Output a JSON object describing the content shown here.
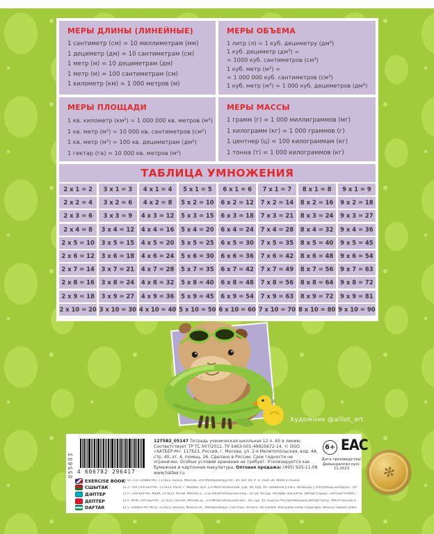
{
  "colors": {
    "background_green": "#a3ca3c",
    "panel_lavender": "#cabdd9",
    "heading_red": "#e32a2b"
  },
  "cards": [
    {
      "title": "МЕРЫ ДЛИНЫ (ЛИНЕЙНЫЕ)",
      "lines": [
        "1 сантиметр (см) = 10 миллиметрам (мм)",
        "1 дециметр (дм) = 10 сантиметрам (см)",
        "1 метр (м) = 10 дециметрам (дм)",
        "1 метр (м) = 100 сантиметрам (см)",
        "1 километр (км) = 1 000 метров (м)"
      ]
    },
    {
      "title": "МЕРЫ ОБЪЕМА",
      "lines": [
        "1 литр (л) = 1 куб. дециметру (дм³)",
        "1 куб. дециметр (дм³) =",
        "= 1000 куб. сантиметров (см³)",
        "1 куб. метр (м³) =",
        "= 1 000 000 куб. сантиметров (см³)",
        "1 куб. метр (м³) = 1 000 куб. дециметров (дм³)"
      ]
    },
    {
      "title": "МЕРЫ ПЛОЩАДИ",
      "lines": [
        "1 кв. километр (км²) = 1 000 000 кв. метров (м²)",
        "1 кв. метр (м²) = 10 000 кв. сантиметров (см²)",
        "1 кв. метр (м²) = 100 кв. дециметрам (дм²)",
        "1 гектар (га) = 10 000 кв. метров (м²)"
      ]
    },
    {
      "title": "МЕРЫ МАССЫ",
      "lines": [
        "1 грамм (г) = 1 000 миллиграммов (мг)",
        "1 килограмм (кг) = 1 000 граммов (г)",
        "1 центнер (ц) = 100 килограммам (кг)",
        "1 тонна (т) = 1 000 килограммов (кг)"
      ]
    }
  ],
  "multiplication": {
    "title": "ТАБЛИЦА УМНОЖЕНИЯ",
    "rows": [
      [
        "2 x 1 = 2",
        "3 x 1 = 3",
        "4 x 1 = 4",
        "5 x 1 = 5",
        "6 x 1 = 6",
        "7 x 1 = 7",
        "8 x 1 = 8",
        "9 x 1 = 9"
      ],
      [
        "2 x 2 = 4",
        "3 x 2 = 6",
        "4 x 2 = 8",
        "5 x 2 = 10",
        "6 x 2 = 12",
        "7 x 2 = 14",
        "8 x 2 = 16",
        "9 x 2 = 18"
      ],
      [
        "2 x 3 = 6",
        "3 x 3 = 9",
        "4 x 3 = 12",
        "5 x 3 = 15",
        "6 x 3 = 18",
        "7 x 3 = 21",
        "8 x 3 = 24",
        "9 x 3 = 27"
      ],
      [
        "2 x 4 = 8",
        "3 x 4 = 12",
        "4 x 4 = 16",
        "5 x 4 = 20",
        "6 x 4 = 24",
        "7 x 4 = 28",
        "8 x 4 = 32",
        "9 x 4 = 36"
      ],
      [
        "2 x 5 = 10",
        "3 x 5 = 15",
        "4 x 5 = 20",
        "5 x 5 = 25",
        "6 x 5 = 30",
        "7 x 5 = 35",
        "8 x 5 = 40",
        "9 x 5 = 45"
      ],
      [
        "2 x 6 = 12",
        "3 x 6 = 18",
        "4 x 6 = 24",
        "5 x 6 = 30",
        "6 x 6 = 36",
        "7 x 6 = 42",
        "8 x 6 = 48",
        "9 x 6 = 54"
      ],
      [
        "2 x 7 = 14",
        "3 x 7 = 21",
        "4 x 7 = 28",
        "5 x 7 = 35",
        "6 x 7 = 42",
        "7 x 7 = 49",
        "8 x 7 = 56",
        "9 x 7 = 63"
      ],
      [
        "2 x 8 = 16",
        "3 x 8 = 24",
        "4 x 8 = 32",
        "5 x 8 = 40",
        "6 x 8 = 48",
        "7 x 8 = 56",
        "8 x 8 = 64",
        "9 x 8 = 72"
      ],
      [
        "2 x 9 = 18",
        "3 x 9 = 27",
        "4 x 9 = 36",
        "5 x 9 = 45",
        "6 x 9 = 54",
        "7 x 9 = 63",
        "8 x 9 = 72",
        "9 x 9 = 81"
      ],
      [
        "2 x 10 = 20",
        "3 x 10 = 30",
        "4 x 10 = 40",
        "5 x 10 = 50",
        "6 x 10 = 60",
        "7 x 10 = 70",
        "8 x 10 = 80",
        "9 x 10 = 90"
      ]
    ]
  },
  "artist_credit": "Художник @alliot_art",
  "footer": {
    "serial_vertical": "055603",
    "barcode_digits": "4 606782 296417",
    "legal": {
      "code": "12Т5В2_05147",
      "body": " Тетрадь ученическая школьная 12 л. А5 в линию. Соответствует ТР ТС 007/2011. ТУ 5463-001-49925672-14. © ООО «ХАТБЕР-М». 117623, Россия, г. Москва, ул. 2-я Мелитопольская, влд. 4А, стр. 40, эт. 4, помещ. 26. Сделано в России. Срок годности не ограничен. Особых условий хранения не требует. Утилизируется как бумажная и картонная макулатура. ",
      "wholesale_label": "Оптовая продажа:",
      "wholesale_value": " (495) 925-11-08 www.hatber.ru"
    },
    "age_rating": "6+",
    "eac_mark": "EAC",
    "production_date": {
      "line1": "Дата производства/",
      "line2": "Дайындалған күні:",
      "line3": "11.2023"
    },
    "languages": [
      {
        "flag": "gb",
        "label": "EXERCISE BOOK",
        "text": "12 sh. LTD «Hatber-M». 117623, Russia, Moscow, 2nd Melitopolskaya str., 4A, bld. 40, fl. 4, room 26. Made in Russia."
      },
      {
        "flag": "by",
        "label": "СШЫТАК",
        "text": "12 л. ТАА «ХАТБЕР-М». 117623, Расія, г. Масква, вул. 2-я Мелітапольская, улд. 4А, буд. 40. Зроблена ў Расіі. Імпарцёр у Рэспубліцы Беларусь: ТАА «Звязат», г. Мінск."
      },
      {
        "flag": "kz",
        "label": "ДӘПТЕР",
        "text": "12 п. «ХАТБЕР-М» ЖШҚ. 117623, Ресей, Мәскеу қ., 2-ші Мелитопольская көш., 4А үй, 40 құр. Ресейде жасалған. Импорттаушы: «ХАТБЕР-АЛМА» ЖШС, Алматы қ. Тұтынушылардың шағымдары..."
      },
      {
        "flag": "kg",
        "label": "ДЕПТЕР",
        "text": "12 б. ЖЧК «ХАТБЕР-М». 117623, Россия, Москва ш., 2-я Мелитопольская көч., 4А, кур. 40. Кыргыз Республикасына импорттоочу: ЖИ Атаканов Н.К., Бишкек ш."
      },
      {
        "flag": "uz",
        "label": "DAFTAR",
        "text": "12 v. «Hatber-M» MChJ. 117623, Rossiya, Moskva sh., Melitopolskaya 2-ko'chasi, 4A-bino, 40-inshoot. Rossiyada ishlab chiqarilgan. Maxsus saqlash sharoitlari talab etilmaydi."
      }
    ]
  }
}
